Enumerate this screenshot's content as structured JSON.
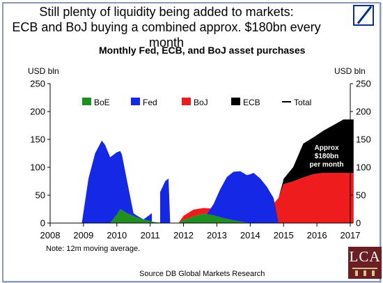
{
  "headline": {
    "line1": "Still plenty of liquidity being added to markets:",
    "line2": "ECB and BoJ buying a combined approx. $180bn every month"
  },
  "logo": {
    "name": "Deutsche Bank logo"
  },
  "badge": {
    "text": "LCA"
  },
  "footer": {
    "note": "Note: 12m moving average.",
    "source": "Source   DB Global Markets Research"
  },
  "chart_data": {
    "type": "area",
    "title": "Monthly Fed, ECB, and BoJ asset purchases",
    "ylabel_left": "USD bln",
    "ylabel_right": "USD bln",
    "ylim": [
      0,
      250
    ],
    "yticks": [
      "0",
      "50",
      "100",
      "150",
      "200",
      "250"
    ],
    "xlim": [
      2008,
      2017
    ],
    "xticks": [
      "2008",
      "2009",
      "2010",
      "2011",
      "2012",
      "2013",
      "2014",
      "2015",
      "2016",
      "2017"
    ],
    "grid": false,
    "legend_position": "top",
    "stacked": true,
    "series": [
      {
        "name": "BoE",
        "color": "#1f8f1f",
        "x": [
          2009.8,
          2010.0,
          2010.1,
          2010.3,
          2010.6,
          2010.9,
          2011.1,
          2011.4,
          2011.85,
          2012.0,
          2012.3,
          2012.6,
          2012.9,
          2013.2,
          2013.5,
          2013.8,
          2014.0
        ],
        "values": [
          0,
          15,
          25,
          18,
          10,
          5,
          2,
          0,
          0,
          5,
          12,
          17,
          14,
          9,
          5,
          2,
          0
        ]
      },
      {
        "name": "Fed",
        "color": "#1428e6",
        "x": [
          2008.95,
          2009.15,
          2009.35,
          2009.55,
          2009.65,
          2009.8,
          2010.0,
          2010.15,
          2010.3,
          2010.5,
          2010.8,
          2011.05,
          2011.3,
          2011.45,
          2011.55,
          2011.6,
          2012.7,
          2012.9,
          2013.1,
          2013.3,
          2013.5,
          2013.7,
          2013.9,
          2014.1,
          2014.3,
          2014.5,
          2014.7,
          2014.85
        ],
        "values": [
          0,
          80,
          125,
          148,
          140,
          118,
          112,
          100,
          60,
          5,
          0,
          15,
          55,
          75,
          80,
          0,
          0,
          20,
          50,
          75,
          87,
          90,
          85,
          90,
          80,
          65,
          45,
          0
        ]
      },
      {
        "name": "BoJ",
        "color": "#ee1c1c",
        "x": [
          2011.85,
          2012.0,
          2012.3,
          2012.6,
          2012.9,
          2013.1,
          2013.3,
          2013.5,
          2013.7,
          2013.9,
          2014.1,
          2014.3,
          2014.5,
          2014.7,
          2014.85,
          2015.0,
          2015.3,
          2015.6,
          2015.9,
          2016.2,
          2016.5,
          2016.8,
          2017.1
        ],
        "values": [
          0,
          8,
          12,
          10,
          12,
          20,
          37,
          43,
          45,
          55,
          55,
          50,
          38,
          35,
          45,
          70,
          75,
          82,
          88,
          90,
          90,
          90,
          90
        ]
      },
      {
        "name": "ECB",
        "color": "#000000",
        "x": [
          2014.85,
          2015.0,
          2015.3,
          2015.6,
          2015.9,
          2016.2,
          2016.5,
          2016.8,
          2017.1
        ],
        "values": [
          0,
          8,
          25,
          60,
          65,
          75,
          85,
          95,
          95
        ]
      },
      {
        "name": "Total",
        "color": "#000000",
        "line": true,
        "x": [
          2015.0,
          2015.3,
          2015.6,
          2015.9,
          2016.2,
          2016.5,
          2016.8,
          2017.1
        ],
        "values": [
          78,
          100,
          142,
          153,
          165,
          175,
          185,
          185
        ]
      }
    ],
    "annotations": [
      "Approx",
      "$180bn",
      "per month"
    ]
  }
}
